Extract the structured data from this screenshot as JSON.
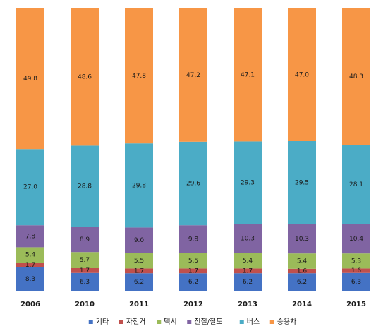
{
  "chart_data": {
    "type": "bar",
    "stacked": true,
    "stack_order": "bottom-to-top",
    "categories": [
      "2006",
      "2010",
      "2011",
      "2012",
      "2013",
      "2014",
      "2015"
    ],
    "series": [
      {
        "name": "기타",
        "color": "#4472C4",
        "values": [
          8.3,
          6.3,
          6.2,
          6.2,
          6.2,
          6.2,
          6.3
        ]
      },
      {
        "name": "자전거",
        "color": "#C0504D",
        "values": [
          1.7,
          1.7,
          1.7,
          1.7,
          1.7,
          1.6,
          1.6
        ]
      },
      {
        "name": "택시",
        "color": "#9BBB59",
        "values": [
          5.4,
          5.7,
          5.5,
          5.5,
          5.4,
          5.4,
          5.3
        ]
      },
      {
        "name": "전철/철도",
        "color": "#8064A2",
        "values": [
          7.8,
          8.9,
          9.0,
          9.8,
          10.3,
          10.3,
          10.4
        ]
      },
      {
        "name": "버스",
        "color": "#4BACC6",
        "values": [
          27.0,
          28.8,
          29.8,
          29.6,
          29.3,
          29.5,
          28.1
        ]
      },
      {
        "name": "승용차",
        "color": "#F79646",
        "values": [
          49.8,
          48.6,
          47.8,
          47.2,
          47.1,
          47.0,
          48.3
        ]
      }
    ],
    "labeled_series": [
      "자전거",
      "택시",
      "전철/철도",
      "버스",
      "승용차"
    ],
    "ylim": [
      0,
      100
    ],
    "grid": false,
    "legend": "bottom"
  }
}
